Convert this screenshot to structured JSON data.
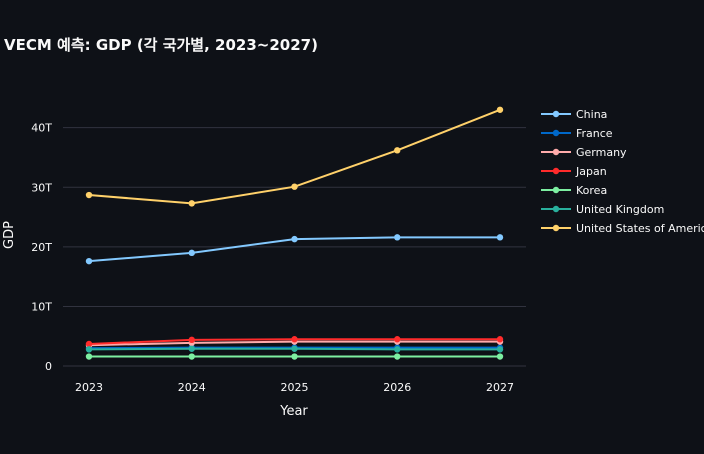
{
  "chart_data": {
    "type": "line",
    "title": "VECM 예측: GDP (각 국가별, 2023~2027)",
    "xlabel": "Year",
    "ylabel": "GDP",
    "x": [
      "2023",
      "2024",
      "2025",
      "2026",
      "2027"
    ],
    "y_ticks": [
      {
        "value": 0,
        "label": "0"
      },
      {
        "value": 10,
        "label": "10T"
      },
      {
        "value": 20,
        "label": "20T"
      },
      {
        "value": 30,
        "label": "30T"
      },
      {
        "value": 40,
        "label": "40T"
      }
    ],
    "y_unit": "T",
    "ylim": [
      -1.5,
      48
    ],
    "grid": true,
    "legend_position": "right",
    "series": [
      {
        "name": "China",
        "color": "#83c9ff",
        "values": [
          17.6,
          19.0,
          21.3,
          21.6,
          21.6
        ]
      },
      {
        "name": "France",
        "color": "#0068c9",
        "values": [
          3.0,
          3.1,
          3.1,
          3.1,
          3.1
        ]
      },
      {
        "name": "Germany",
        "color": "#ffabab",
        "values": [
          3.5,
          3.9,
          4.1,
          4.1,
          4.1
        ]
      },
      {
        "name": "Japan",
        "color": "#ff2b2b",
        "values": [
          3.7,
          4.4,
          4.5,
          4.5,
          4.5
        ]
      },
      {
        "name": "Korea",
        "color": "#7defa1",
        "values": [
          1.6,
          1.6,
          1.6,
          1.6,
          1.6
        ]
      },
      {
        "name": "United Kingdom",
        "color": "#29b09d",
        "values": [
          2.8,
          2.9,
          2.9,
          2.8,
          2.8
        ]
      },
      {
        "name": "United States of America",
        "color": "#ffd16a",
        "values": [
          28.7,
          27.3,
          30.1,
          36.2,
          43.0
        ]
      }
    ]
  }
}
